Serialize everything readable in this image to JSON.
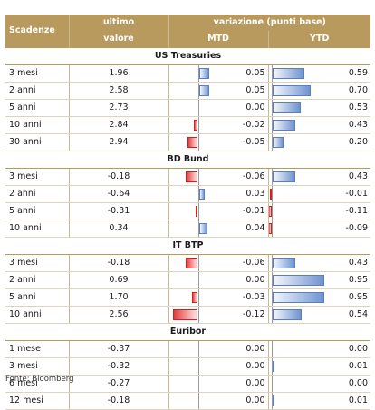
{
  "header": {
    "col_scadenze": "Scadenze",
    "col_ultimo_1": "ultimo",
    "col_ultimo_2": "valore",
    "col_variazione": "variazione (punti base)",
    "col_mtd": "MTD",
    "col_ytd": "YTD"
  },
  "sections": [
    {
      "title": "US Treasuries",
      "rows": [
        {
          "label": "3 mesi",
          "value": "1.96",
          "mtd": "0.05",
          "ytd": "0.59"
        },
        {
          "label": "2 anni",
          "value": "2.58",
          "mtd": "0.05",
          "ytd": "0.70"
        },
        {
          "label": "5 anni",
          "value": "2.73",
          "mtd": "0.00",
          "ytd": "0.53"
        },
        {
          "label": "10 anni",
          "value": "2.84",
          "mtd": "-0.02",
          "ytd": "0.43"
        },
        {
          "label": "30 anni",
          "value": "2.94",
          "mtd": "-0.05",
          "ytd": "0.20"
        }
      ]
    },
    {
      "title": "BD Bund",
      "rows": [
        {
          "label": "3 mesi",
          "value": "-0.18",
          "mtd": "-0.06",
          "ytd": "0.43"
        },
        {
          "label": "2 anni",
          "value": "-0.64",
          "mtd": "0.03",
          "ytd": "-0.01"
        },
        {
          "label": "5 anni",
          "value": "-0.31",
          "mtd": "-0.01",
          "ytd": "-0.11"
        },
        {
          "label": "10 anni",
          "value": "0.34",
          "mtd": "0.04",
          "ytd": "-0.09"
        }
      ]
    },
    {
      "title": "IT BTP",
      "rows": [
        {
          "label": "3 mesi",
          "value": "-0.18",
          "mtd": "-0.06",
          "ytd": "0.43"
        },
        {
          "label": "2 anni",
          "value": "0.69",
          "mtd": "0.00",
          "ytd": "0.95"
        },
        {
          "label": "5 anni",
          "value": "1.70",
          "mtd": "-0.03",
          "ytd": "0.95"
        },
        {
          "label": "10 anni",
          "value": "2.56",
          "mtd": "-0.12",
          "ytd": "0.54"
        }
      ]
    },
    {
      "title": "Euribor",
      "rows": [
        {
          "label": "1 mese",
          "value": "-0.37",
          "mtd": "0.00",
          "ytd": "0.00"
        },
        {
          "label": "3 mesi",
          "value": "-0.32",
          "mtd": "0.00",
          "ytd": "0.01"
        },
        {
          "label": "6 mesi",
          "value": "-0.27",
          "mtd": "0.00",
          "ytd": "0.00"
        },
        {
          "label": "12 mesi",
          "value": "-0.18",
          "mtd": "0.00",
          "ytd": "0.01"
        }
      ]
    }
  ],
  "source": "Fonte: Bloomberg",
  "colors": {
    "header_bg": "#b89a5e",
    "positive": "#6f93d0",
    "negative": "#e63b3b"
  }
}
